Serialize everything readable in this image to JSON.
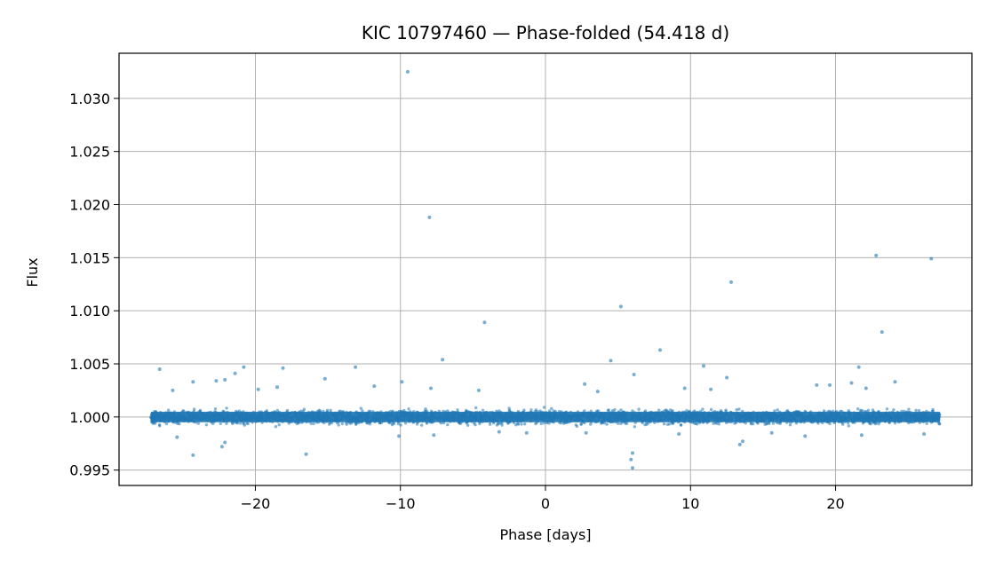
{
  "chart_data": {
    "type": "scatter",
    "title": "KIC 10797460 — Phase-folded (54.418 d)",
    "xlabel": "Phase [days]",
    "ylabel": "Flux",
    "xlim": [
      -29.4,
      29.4
    ],
    "ylim": [
      0.99355,
      1.03425
    ],
    "xticks": [
      -20,
      -10,
      0,
      10,
      20
    ],
    "xtick_labels": [
      "−20",
      "−10",
      "0",
      "10",
      "20"
    ],
    "yticks": [
      0.995,
      1.0,
      1.005,
      1.01,
      1.015,
      1.02,
      1.025,
      1.03
    ],
    "ytick_labels": [
      "0.995",
      "1.000",
      "1.005",
      "1.010",
      "1.015",
      "1.020",
      "1.025",
      "1.030"
    ],
    "grid": true,
    "point_color": "#1f77b4",
    "band": {
      "x_range": [
        -27.2,
        27.2
      ],
      "center": 1.0,
      "core_spread": 0.0009
    },
    "series": [
      {
        "values_note": "",
        "points": [
          [
            -9.5,
            1.0325
          ],
          [
            -8.0,
            1.0188
          ],
          [
            -4.2,
            1.0089
          ],
          [
            5.2,
            1.0104
          ],
          [
            12.8,
            1.0127
          ],
          [
            22.8,
            1.0152
          ],
          [
            26.6,
            1.0149
          ],
          [
            23.2,
            1.008
          ],
          [
            7.9,
            1.0063
          ],
          [
            -7.1,
            1.0054
          ],
          [
            4.5,
            1.0053
          ],
          [
            10.9,
            1.0048
          ],
          [
            -26.6,
            1.0045
          ],
          [
            -13.1,
            1.0047
          ],
          [
            -20.8,
            1.0047
          ],
          [
            -18.1,
            1.0046
          ],
          [
            21.6,
            1.0047
          ],
          [
            -21.4,
            1.0041
          ],
          [
            -15.2,
            1.0036
          ],
          [
            -9.9,
            1.0033
          ],
          [
            12.5,
            1.0037
          ],
          [
            6.1,
            1.004
          ],
          [
            -22.7,
            1.0034
          ],
          [
            -22.1,
            1.0035
          ],
          [
            -11.8,
            1.0029
          ],
          [
            -24.3,
            1.0033
          ],
          [
            -18.5,
            1.0028
          ],
          [
            -19.8,
            1.0026
          ],
          [
            -25.7,
            1.0025
          ],
          [
            2.7,
            1.0031
          ],
          [
            9.6,
            1.0027
          ],
          [
            11.4,
            1.0026
          ],
          [
            21.1,
            1.0032
          ],
          [
            18.7,
            1.003
          ],
          [
            19.6,
            1.003
          ],
          [
            24.1,
            1.0033
          ],
          [
            -7.9,
            1.0027
          ],
          [
            -4.6,
            1.0025
          ],
          [
            3.6,
            1.0024
          ],
          [
            22.1,
            1.0027
          ],
          [
            -24.3,
            0.9964
          ],
          [
            -16.5,
            0.9965
          ],
          [
            6.0,
            0.9952
          ],
          [
            5.9,
            0.996
          ],
          [
            6.0,
            0.9966
          ],
          [
            13.4,
            0.9974
          ],
          [
            13.6,
            0.9977
          ],
          [
            -22.3,
            0.9972
          ],
          [
            -22.1,
            0.9976
          ],
          [
            -25.4,
            0.9981
          ],
          [
            -10.1,
            0.9982
          ],
          [
            -7.7,
            0.9983
          ],
          [
            17.9,
            0.9982
          ],
          [
            9.2,
            0.9984
          ],
          [
            2.8,
            0.9985
          ],
          [
            21.8,
            0.9983
          ],
          [
            -3.2,
            0.9986
          ],
          [
            -1.3,
            0.9985
          ],
          [
            15.6,
            0.9985
          ],
          [
            26.1,
            0.9984
          ]
        ]
      }
    ]
  }
}
